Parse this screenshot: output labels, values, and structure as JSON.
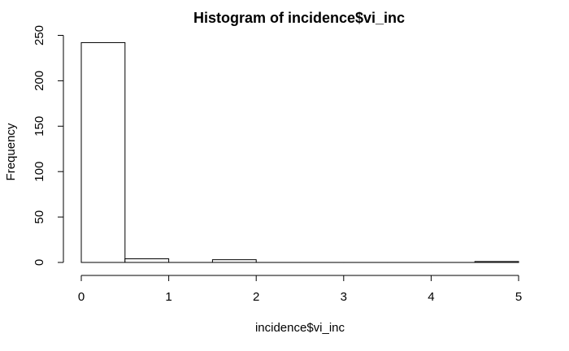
{
  "chart_data": {
    "type": "bar",
    "title": "Histogram of incidence$vi_inc",
    "xlabel": "incidence$vi_inc",
    "ylabel": "Frequency",
    "bins": [
      {
        "start": 0.0,
        "end": 0.5,
        "count": 242
      },
      {
        "start": 0.5,
        "end": 1.0,
        "count": 4
      },
      {
        "start": 1.0,
        "end": 1.5,
        "count": 0
      },
      {
        "start": 1.5,
        "end": 2.0,
        "count": 3
      },
      {
        "start": 2.0,
        "end": 2.5,
        "count": 0
      },
      {
        "start": 2.5,
        "end": 3.0,
        "count": 0
      },
      {
        "start": 3.0,
        "end": 3.5,
        "count": 0
      },
      {
        "start": 3.5,
        "end": 4.0,
        "count": 0
      },
      {
        "start": 4.0,
        "end": 4.5,
        "count": 0
      },
      {
        "start": 4.5,
        "end": 5.0,
        "count": 1
      }
    ],
    "xlim": [
      0,
      5
    ],
    "ylim": [
      0,
      250
    ],
    "xticks": [
      0,
      1,
      2,
      3,
      4,
      5
    ],
    "yticks": [
      0,
      50,
      100,
      150,
      200,
      250
    ],
    "grid": false
  }
}
